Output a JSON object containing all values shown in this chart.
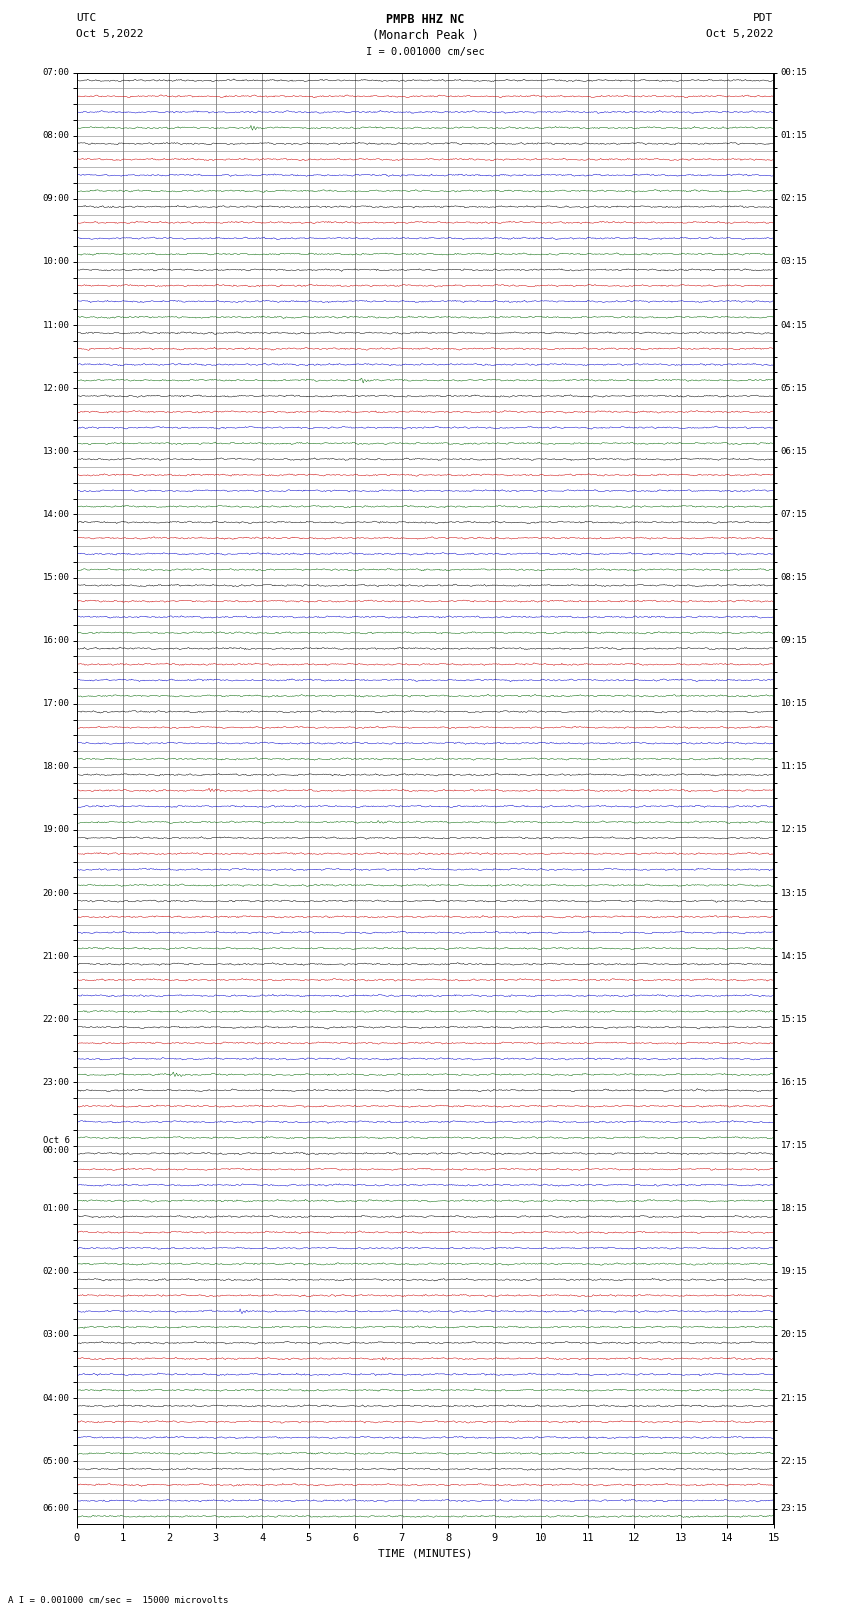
{
  "title_line1": "PMPB HHZ NC",
  "title_line2": "(Monarch Peak )",
  "scale_text": "I = 0.001000 cm/sec",
  "bottom_label": "A I = 0.001000 cm/sec =  15000 microvolts",
  "xlabel": "TIME (MINUTES)",
  "background_color": "#ffffff",
  "trace_colors": [
    "#000000",
    "#cc0000",
    "#0000cc",
    "#006600"
  ],
  "grid_color_v": "#808080",
  "grid_color_h": "#808080",
  "utc_labels": [
    "07:00",
    "",
    "",
    "",
    "08:00",
    "",
    "",
    "",
    "09:00",
    "",
    "",
    "",
    "10:00",
    "",
    "",
    "",
    "11:00",
    "",
    "",
    "",
    "12:00",
    "",
    "",
    "",
    "13:00",
    "",
    "",
    "",
    "14:00",
    "",
    "",
    "",
    "15:00",
    "",
    "",
    "",
    "16:00",
    "",
    "",
    "",
    "17:00",
    "",
    "",
    "",
    "18:00",
    "",
    "",
    "",
    "19:00",
    "",
    "",
    "",
    "20:00",
    "",
    "",
    "",
    "21:00",
    "",
    "",
    "",
    "22:00",
    "",
    "",
    "",
    "23:00",
    "",
    "",
    "",
    "Oct 6\n00:00",
    "",
    "",
    "",
    "01:00",
    "",
    "",
    "",
    "02:00",
    "",
    "",
    "",
    "03:00",
    "",
    "",
    "",
    "04:00",
    "",
    "",
    "",
    "05:00",
    "",
    "",
    "06:00"
  ],
  "pdt_labels": [
    "00:15",
    "",
    "",
    "",
    "01:15",
    "",
    "",
    "",
    "02:15",
    "",
    "",
    "",
    "03:15",
    "",
    "",
    "",
    "04:15",
    "",
    "",
    "",
    "05:15",
    "",
    "",
    "",
    "06:15",
    "",
    "",
    "",
    "07:15",
    "",
    "",
    "",
    "08:15",
    "",
    "",
    "",
    "09:15",
    "",
    "",
    "",
    "10:15",
    "",
    "",
    "",
    "11:15",
    "",
    "",
    "",
    "12:15",
    "",
    "",
    "",
    "13:15",
    "",
    "",
    "",
    "14:15",
    "",
    "",
    "",
    "15:15",
    "",
    "",
    "",
    "16:15",
    "",
    "",
    "",
    "17:15",
    "",
    "",
    "",
    "18:15",
    "",
    "",
    "",
    "19:15",
    "",
    "",
    "",
    "20:15",
    "",
    "",
    "",
    "21:15",
    "",
    "",
    "",
    "22:15",
    "",
    "",
    "23:15"
  ],
  "n_rows": 92,
  "x_min": 0,
  "x_max": 15,
  "x_ticks": [
    0,
    1,
    2,
    3,
    4,
    5,
    6,
    7,
    8,
    9,
    10,
    11,
    12,
    13,
    14,
    15
  ],
  "noise_amplitude": 0.04,
  "fig_width": 8.5,
  "fig_height": 16.13,
  "dpi": 100
}
